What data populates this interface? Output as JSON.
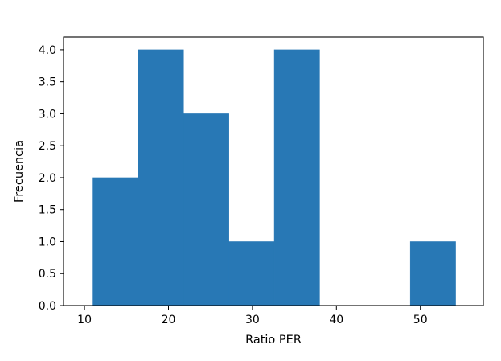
{
  "chart_data": {
    "type": "bar",
    "subtype": "histogram",
    "bin_edges": [
      11.0,
      16.4,
      21.8,
      27.2,
      32.6,
      38.0,
      43.4,
      48.8,
      54.2
    ],
    "counts": [
      2,
      4,
      3,
      1,
      4,
      0,
      0,
      1
    ],
    "title": "",
    "xlabel": "Ratio PER",
    "ylabel": "Frecuencia",
    "xlim": [
      7.5,
      57.5
    ],
    "ylim": [
      0,
      4.2
    ],
    "xticks": [
      10,
      20,
      30,
      40,
      50
    ],
    "xtick_labels": [
      "10",
      "20",
      "30",
      "40",
      "50"
    ],
    "yticks": [
      0.0,
      0.5,
      1.0,
      1.5,
      2.0,
      2.5,
      3.0,
      3.5,
      4.0
    ],
    "ytick_labels": [
      "0.0",
      "0.5",
      "1.0",
      "1.5",
      "2.0",
      "2.5",
      "3.0",
      "3.5",
      "4.0"
    ],
    "grid": false,
    "legend": "none",
    "bar_color": "#2878b5"
  }
}
